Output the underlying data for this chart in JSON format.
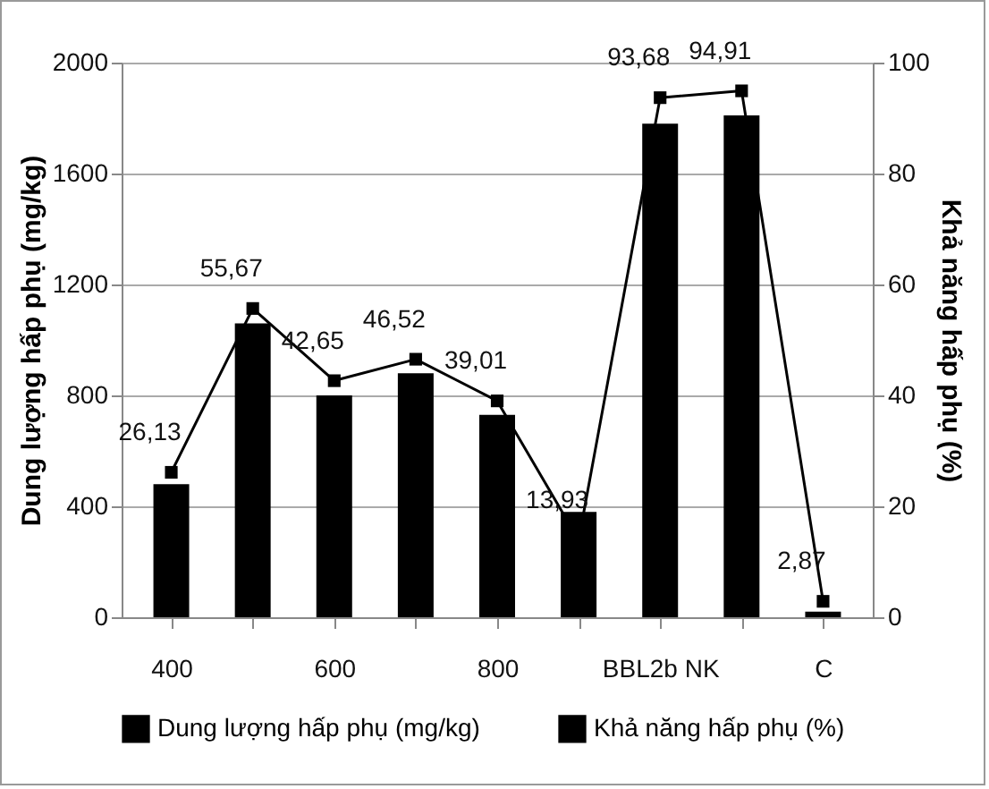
{
  "chart_data": {
    "type": "bar",
    "categories": [
      "400",
      null,
      "600",
      null,
      "800",
      null,
      "BBL2b NK",
      null,
      "C"
    ],
    "ylabel": "Dung lượng hấp phụ (mg/kg)",
    "y2label": "Khả năng hấp phụ (%)",
    "ylim": [
      0,
      2000
    ],
    "yticks": [
      0,
      400,
      800,
      1200,
      1600,
      2000
    ],
    "y2lim": [
      0,
      100
    ],
    "y2ticks": [
      0,
      20,
      40,
      60,
      80,
      100
    ],
    "grid": "y",
    "legend": "bottom",
    "series": [
      {
        "name": "Dung lượng hấp phụ (mg/kg)",
        "color": "#000000",
        "values": [
          480,
          1060,
          800,
          880,
          730,
          380,
          1780,
          1810,
          20
        ]
      },
      {
        "name": "Khả năng hấp phụ (%)",
        "type": "line",
        "axis": "y2",
        "color": "#000000",
        "marker": "square",
        "values": [
          26.13,
          55.67,
          42.65,
          46.52,
          39.01,
          13.93,
          93.68,
          94.91,
          2.87
        ],
        "value_labels": [
          "26,13",
          "55,67",
          "42,65",
          "46,52",
          "39,01",
          "13,93",
          "93,68",
          "94,91",
          "2,87"
        ]
      }
    ]
  }
}
